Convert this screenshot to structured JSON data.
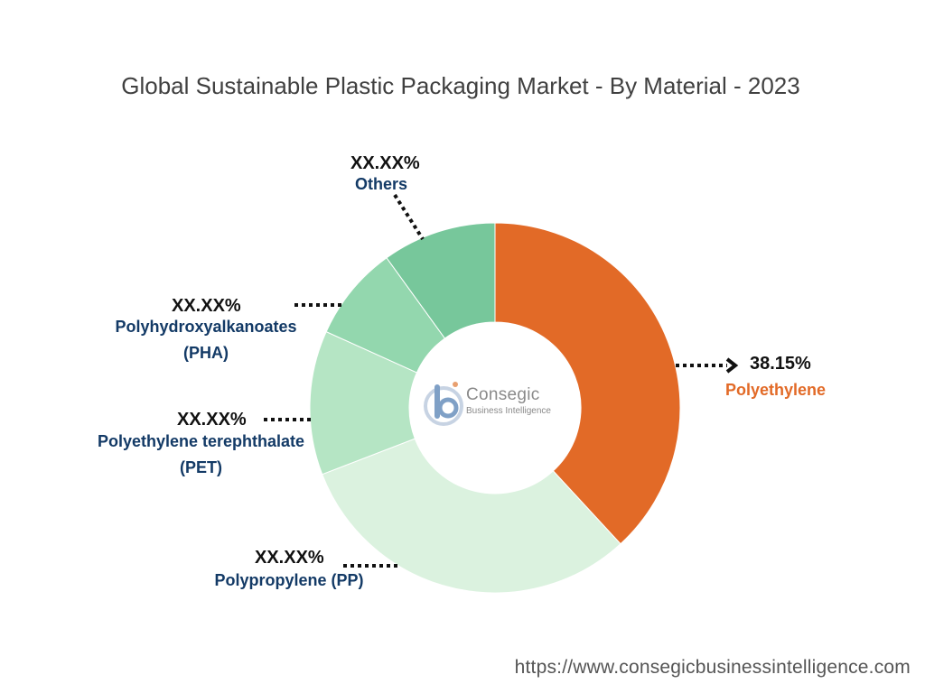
{
  "title": "Global Sustainable Plastic Packaging Market - By Material - 2023",
  "chart_data": {
    "type": "pie",
    "variant": "donut",
    "title": "Global Sustainable Plastic Packaging Market - By Material - 2023",
    "slices": [
      {
        "label": "Polyethylene",
        "value": 38.15,
        "value_label": "38.15%",
        "color": "#e26a27",
        "label_color": "#e26a27"
      },
      {
        "label": "Polypropylene (PP)",
        "value": 31.0,
        "value_label": "XX.XX%",
        "color": "#dbf2df",
        "label_color": "#133a66"
      },
      {
        "label": "Polyethylene terephthalate (PET)",
        "value": 12.6,
        "value_label": "XX.XX%",
        "color": "#b5e5c4",
        "label_color": "#133a66"
      },
      {
        "label": "Polyhydroxyalkanoates (PHA)",
        "value": 8.3,
        "value_label": "XX.XX%",
        "color": "#93d7ae",
        "label_color": "#133a66"
      },
      {
        "label": "Others",
        "value": 9.95,
        "value_label": "XX.XX%",
        "color": "#77c79b",
        "label_color": "#133a66"
      }
    ],
    "start_angle": "12 o'clock",
    "direction": "clockwise"
  },
  "logo": {
    "word": "Consegic",
    "sub": "Business Intelligence"
  },
  "footer": "https://www.consegicbusinessintelligence.com"
}
